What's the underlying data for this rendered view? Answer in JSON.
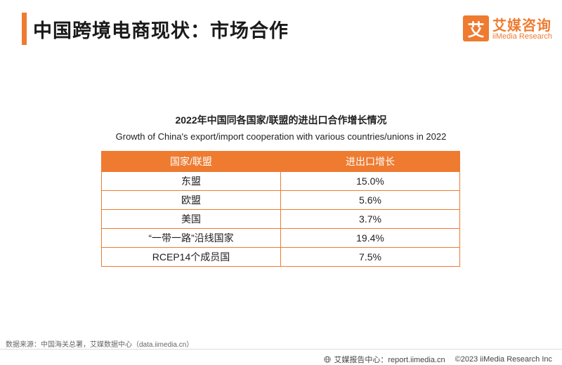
{
  "header": {
    "title": "中国跨境电商现状：市场合作"
  },
  "logo": {
    "mark": "艾",
    "name_cn": "艾媒咨询",
    "name_en": "iiMedia Research"
  },
  "table": {
    "title": "2022年中国同各国家/联盟的进出口合作增长情况",
    "subtitle": "Growth of China's export/import cooperation with various countries/unions in 2022",
    "headers": [
      "国家/联盟",
      "进出口增长"
    ],
    "rows": [
      [
        "东盟",
        "15.0%"
      ],
      [
        "欧盟",
        "5.6%"
      ],
      [
        "美国",
        "3.7%"
      ],
      [
        "“一带一路”沿线国家",
        "19.4%"
      ],
      [
        "RCEP14个成员国",
        "7.5%"
      ]
    ]
  },
  "footer": {
    "source": "数据来源：中国海关总署，艾媒数据中心（data.iimedia.cn）",
    "report_center": "艾媒报告中心：report.iimedia.cn",
    "copyright": "©2023  iiMedia Research  Inc"
  },
  "colors": {
    "accent": "#ee7b30"
  }
}
